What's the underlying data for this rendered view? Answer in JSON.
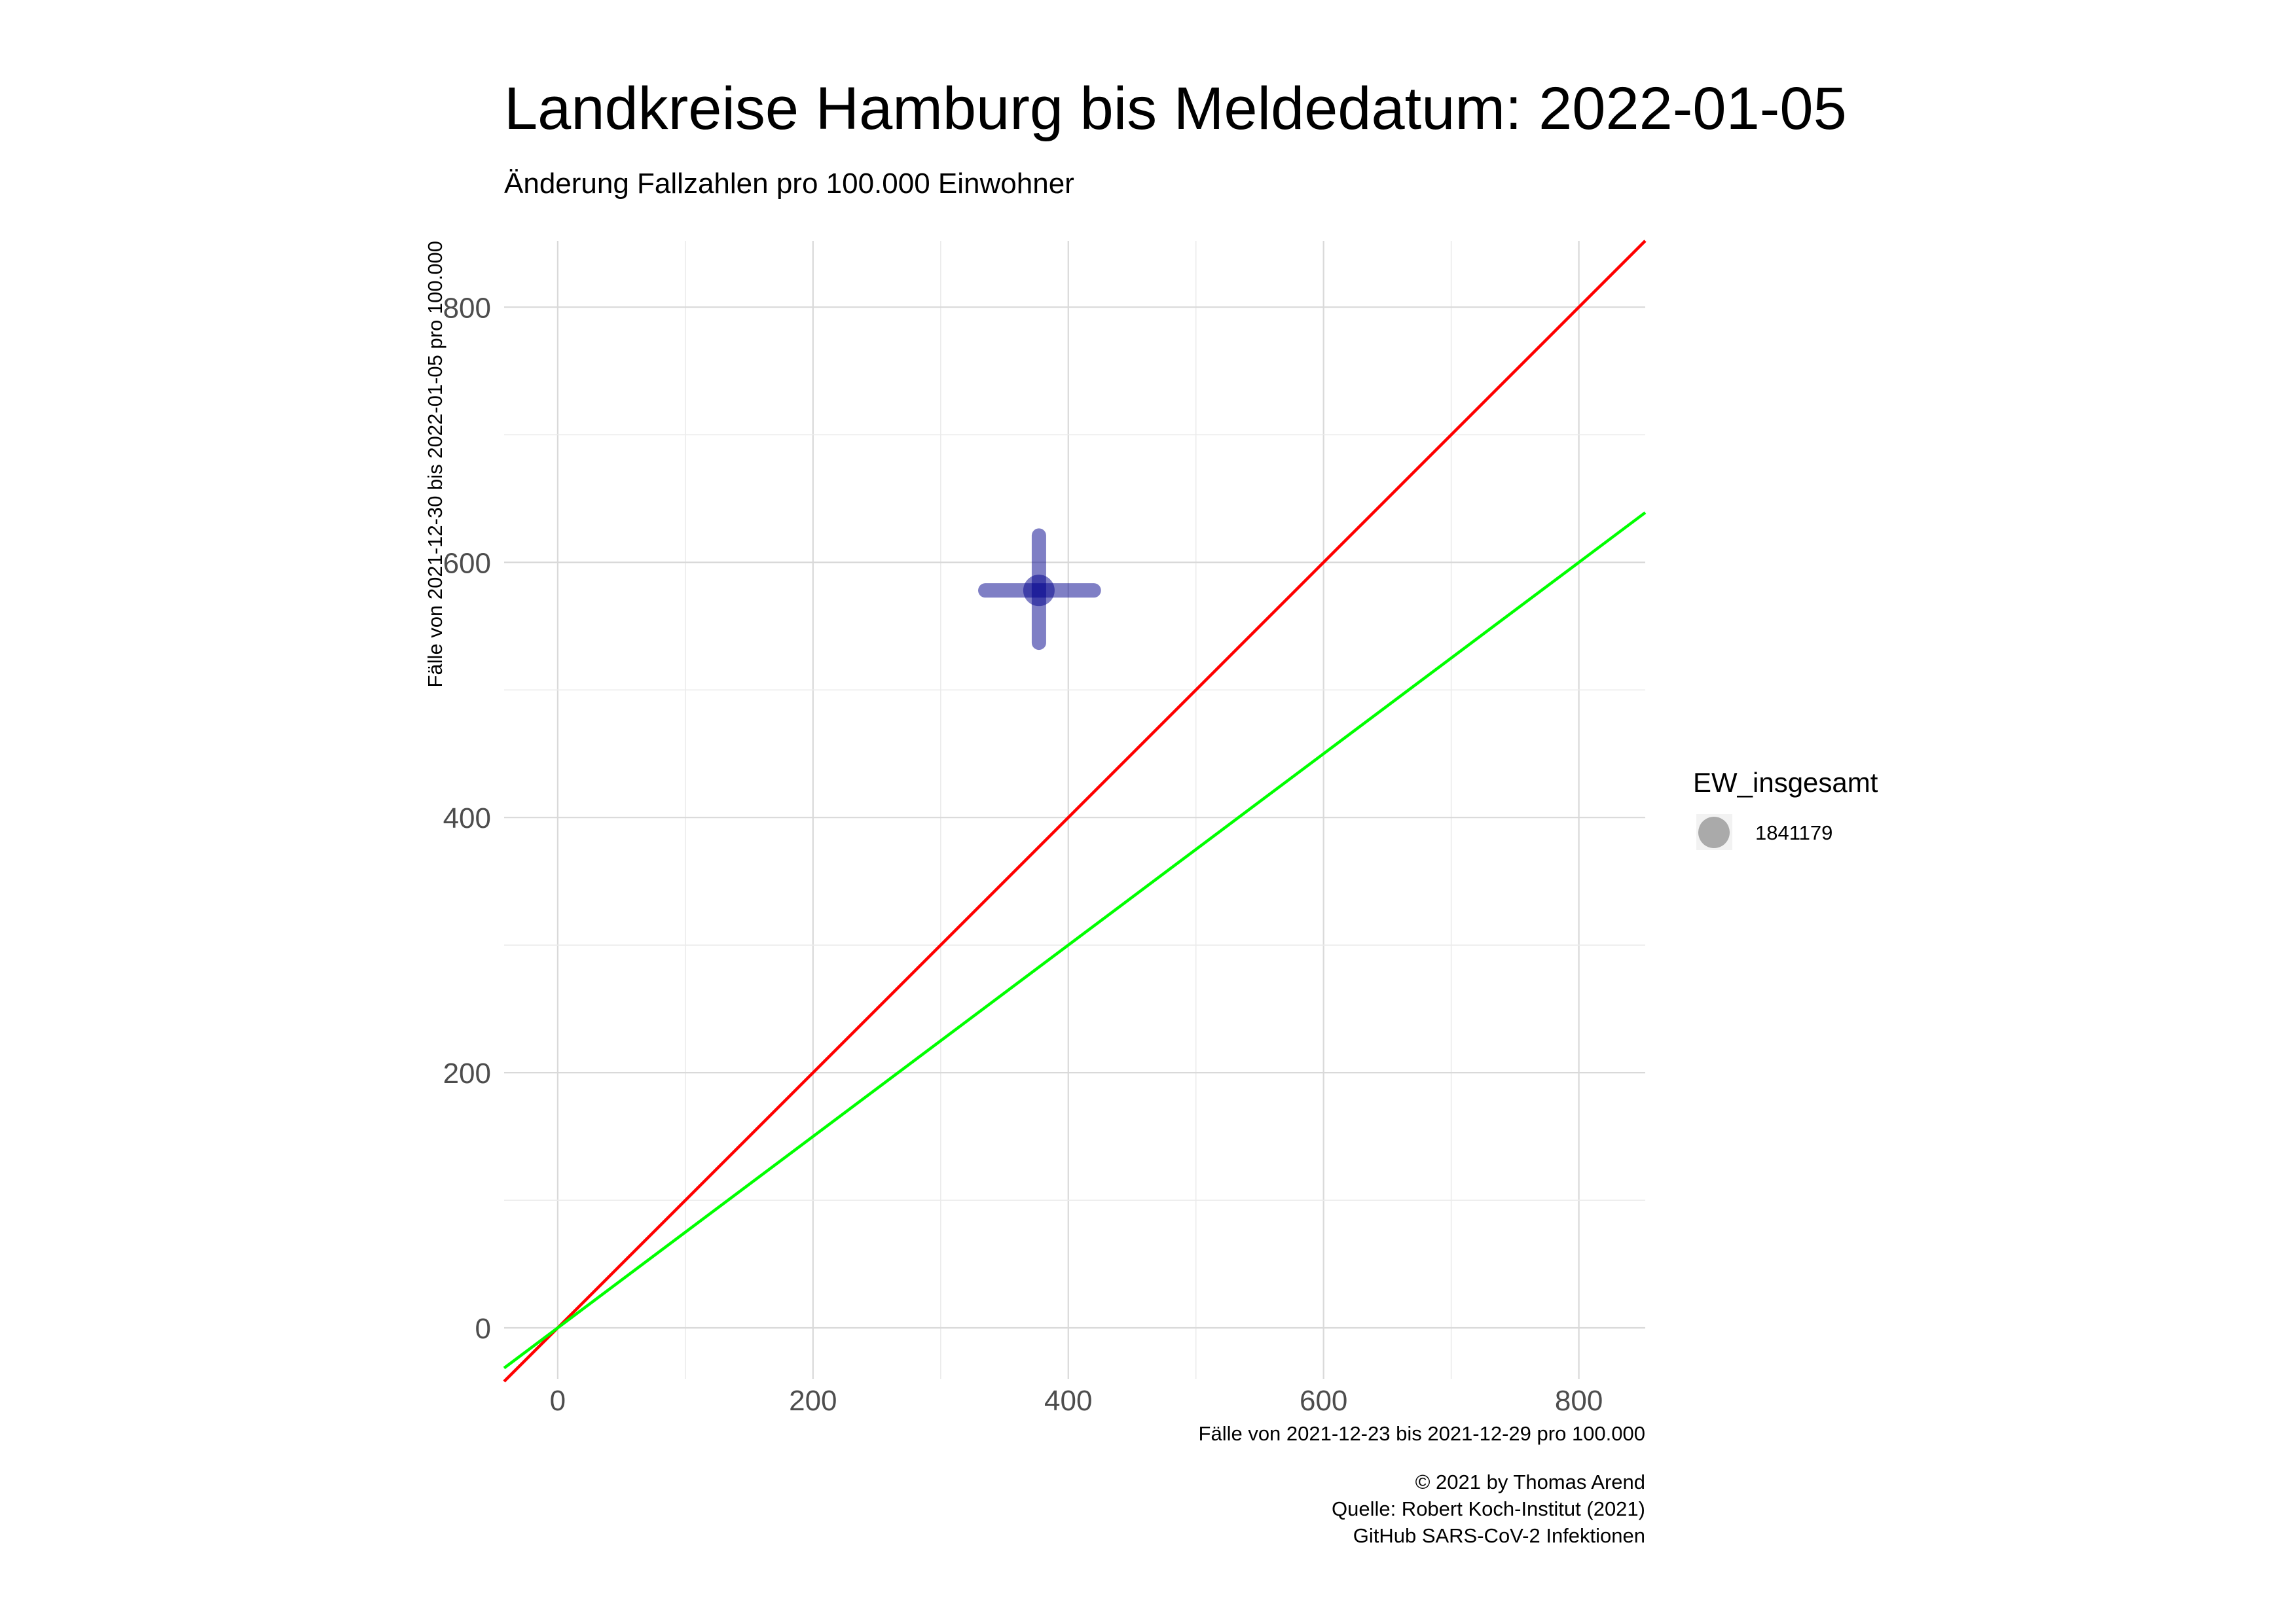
{
  "chart_data": {
    "type": "scatter",
    "title": "Landkreise Hamburg bis Meldedatum: 2022-01-05",
    "subtitle": "Änderung Fallzahlen pro 100.000 Einwohner",
    "xlabel": "Fälle von 2021-12-23 bis 2021-12-29 pro 100.000",
    "ylabel": "Fälle von 2021-12-30 bis 2022-01-05 pro 100.000",
    "xlim": [
      -42,
      852
    ],
    "ylim": [
      -40,
      852
    ],
    "x_ticks": [
      0,
      200,
      400,
      600,
      800
    ],
    "y_ticks": [
      0,
      200,
      400,
      600,
      800
    ],
    "x_tick_labels": [
      "0",
      "200",
      "400",
      "600",
      "800"
    ],
    "y_tick_labels": [
      "0",
      "200",
      "400",
      "600",
      "800"
    ],
    "grid": true,
    "reference_lines": [
      {
        "slope": 1.0,
        "intercept": 0,
        "color": "#ff0000"
      },
      {
        "slope": 0.75,
        "intercept": 0,
        "color": "#00ff00"
      }
    ],
    "points": [
      {
        "x": 377,
        "y": 578,
        "x_err": [
          335,
          420
        ],
        "y_err": [
          537,
          621
        ],
        "size": 1841179,
        "color": "#00008b"
      }
    ],
    "legend": {
      "title": "EW_insgesamt",
      "entries": [
        "1841179"
      ],
      "position": "right"
    },
    "caption": [
      "© 2021 by Thomas Arend",
      "Quelle: Robert Koch-Institut (2021)",
      "GitHub SARS-CoV-2 Infektionen"
    ]
  }
}
